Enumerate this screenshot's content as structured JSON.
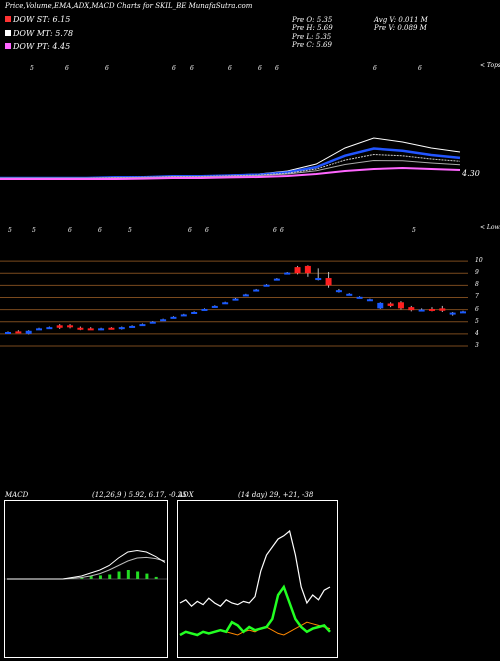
{
  "header": {
    "title": "Price,Volume,EMA,ADX,MACD Charts for SKIL_BE MunafaSutra.com",
    "dow_st": "DOW ST: 6.15",
    "dow_mt": "DOW MT: 5.78",
    "dow_pt": "DOW PT: 4.45",
    "stats": {
      "open": "Pre   O: 5.35",
      "high": "Pre   H: 5.69",
      "low": "Pre   L: 5.35",
      "close": "Pre   C: 5.69",
      "avg_vol": "Avg V: 0.011 M",
      "pre_vol": "Pre   V: 0.089 M"
    }
  },
  "colors": {
    "dow_st": "#ff3333",
    "dow_mt": "#ffffff",
    "dow_pt": "#ff66ff",
    "up": "#1a5aff",
    "down": "#ff2020",
    "macd_hist": "#22dd22",
    "adx_green": "#22ff22",
    "adx_orange": "#ff8800"
  },
  "ema_panel": {
    "top_label": "< Tops",
    "price_label": "4.30",
    "top_markers": [
      "5",
      "6",
      "6",
      "6",
      "6",
      "6",
      "6",
      "6",
      "6",
      "6"
    ],
    "bottom_label": "< Lows",
    "bottom_markers": [
      "5",
      "5",
      "6",
      "6",
      "5",
      "6",
      "6",
      "6",
      "6",
      "5"
    ]
  },
  "price_panel": {
    "y_labels": [
      "10",
      "9",
      "8",
      "7",
      "6",
      "5",
      "4",
      "3"
    ]
  },
  "macd_panel": {
    "title": "MACD",
    "params": "(12,26,9 ) 5.92,  6.17,  -0.25"
  },
  "adx_panel": {
    "title": "ADX",
    "params": "(14  day) 29,  +21,  -38"
  },
  "chart_data": {
    "type": "candlestick",
    "ema_lines": {
      "note_series": [
        "fast EMA",
        "mid EMA",
        "slow EMA",
        "long EMA"
      ],
      "fast": [
        4.1,
        4.1,
        4.1,
        4.1,
        4.15,
        4.15,
        4.2,
        4.2,
        4.25,
        4.3,
        4.45,
        4.8,
        5.6,
        6.1,
        5.9,
        5.6,
        5.4
      ],
      "slow": [
        4.1,
        4.1,
        4.1,
        4.1,
        4.1,
        4.12,
        4.15,
        4.15,
        4.18,
        4.2,
        4.25,
        4.35,
        4.5,
        4.6,
        4.65,
        4.6,
        4.55
      ]
    },
    "price_ylim": [
      2.5,
      10.5
    ],
    "candles": [
      {
        "o": 4.1,
        "h": 4.2,
        "l": 4.0,
        "c": 4.15,
        "dir": "up"
      },
      {
        "o": 4.15,
        "h": 4.3,
        "l": 4.1,
        "c": 4.2,
        "dir": "down"
      },
      {
        "o": 4.0,
        "h": 4.3,
        "l": 3.95,
        "c": 4.25,
        "dir": "up"
      },
      {
        "o": 4.4,
        "h": 4.5,
        "l": 4.35,
        "c": 4.45,
        "dir": "up"
      },
      {
        "o": 4.5,
        "h": 4.6,
        "l": 4.45,
        "c": 4.55,
        "dir": "up"
      },
      {
        "o": 4.7,
        "h": 4.8,
        "l": 4.4,
        "c": 4.5,
        "dir": "down"
      },
      {
        "o": 4.7,
        "h": 4.8,
        "l": 4.45,
        "c": 4.55,
        "dir": "down"
      },
      {
        "o": 4.5,
        "h": 4.6,
        "l": 4.3,
        "c": 4.4,
        "dir": "down"
      },
      {
        "o": 4.45,
        "h": 4.55,
        "l": 4.35,
        "c": 4.4,
        "dir": "down"
      },
      {
        "o": 4.3,
        "h": 4.5,
        "l": 4.3,
        "c": 4.45,
        "dir": "up"
      },
      {
        "o": 4.4,
        "h": 4.55,
        "l": 4.35,
        "c": 4.5,
        "dir": "down"
      },
      {
        "o": 4.4,
        "h": 4.6,
        "l": 4.35,
        "c": 4.55,
        "dir": "up"
      },
      {
        "o": 4.6,
        "h": 4.7,
        "l": 4.55,
        "c": 4.65,
        "dir": "up"
      },
      {
        "o": 4.75,
        "h": 4.85,
        "l": 4.7,
        "c": 4.8,
        "dir": "up"
      },
      {
        "o": 4.95,
        "h": 5.05,
        "l": 4.9,
        "c": 5.0,
        "dir": "up"
      },
      {
        "o": 5.15,
        "h": 5.25,
        "l": 5.1,
        "c": 5.2,
        "dir": "up"
      },
      {
        "o": 5.35,
        "h": 5.45,
        "l": 5.3,
        "c": 5.4,
        "dir": "up"
      },
      {
        "o": 5.55,
        "h": 5.65,
        "l": 5.5,
        "c": 5.6,
        "dir": "up"
      },
      {
        "o": 5.75,
        "h": 5.85,
        "l": 5.7,
        "c": 5.8,
        "dir": "up"
      },
      {
        "o": 6.0,
        "h": 6.1,
        "l": 5.95,
        "c": 6.05,
        "dir": "up"
      },
      {
        "o": 6.25,
        "h": 6.35,
        "l": 6.2,
        "c": 6.3,
        "dir": "up"
      },
      {
        "o": 6.55,
        "h": 6.65,
        "l": 6.5,
        "c": 6.6,
        "dir": "up"
      },
      {
        "o": 6.85,
        "h": 6.95,
        "l": 6.8,
        "c": 6.9,
        "dir": "up"
      },
      {
        "o": 7.2,
        "h": 7.3,
        "l": 7.15,
        "c": 7.25,
        "dir": "up"
      },
      {
        "o": 7.6,
        "h": 7.7,
        "l": 7.55,
        "c": 7.65,
        "dir": "up"
      },
      {
        "o": 8.0,
        "h": 8.1,
        "l": 7.95,
        "c": 8.05,
        "dir": "up"
      },
      {
        "o": 8.5,
        "h": 8.6,
        "l": 8.45,
        "c": 8.55,
        "dir": "up"
      },
      {
        "o": 9.0,
        "h": 9.1,
        "l": 8.95,
        "c": 9.05,
        "dir": "up"
      },
      {
        "o": 9.5,
        "h": 9.6,
        "l": 8.9,
        "c": 9.0,
        "dir": "down"
      },
      {
        "o": 9.6,
        "h": 9.65,
        "l": 8.7,
        "c": 9.0,
        "dir": "down"
      },
      {
        "o": 8.5,
        "h": 9.4,
        "l": 8.4,
        "c": 8.6,
        "dir": "up"
      },
      {
        "o": 8.6,
        "h": 9.1,
        "l": 7.8,
        "c": 8.0,
        "dir": "down"
      },
      {
        "o": 7.5,
        "h": 7.7,
        "l": 7.4,
        "c": 7.6,
        "dir": "up"
      },
      {
        "o": 7.25,
        "h": 7.35,
        "l": 7.2,
        "c": 7.3,
        "dir": "up"
      },
      {
        "o": 7.0,
        "h": 7.1,
        "l": 6.95,
        "c": 7.05,
        "dir": "up"
      },
      {
        "o": 6.8,
        "h": 6.9,
        "l": 6.75,
        "c": 6.85,
        "dir": "up"
      },
      {
        "o": 6.1,
        "h": 6.6,
        "l": 6.05,
        "c": 6.55,
        "dir": "up"
      },
      {
        "o": 6.5,
        "h": 6.6,
        "l": 6.2,
        "c": 6.3,
        "dir": "down"
      },
      {
        "o": 6.6,
        "h": 6.7,
        "l": 6.0,
        "c": 6.1,
        "dir": "down"
      },
      {
        "o": 6.2,
        "h": 6.3,
        "l": 5.85,
        "c": 5.95,
        "dir": "down"
      },
      {
        "o": 5.95,
        "h": 6.1,
        "l": 5.85,
        "c": 6.0,
        "dir": "up"
      },
      {
        "o": 5.9,
        "h": 6.2,
        "l": 5.85,
        "c": 6.05,
        "dir": "down"
      },
      {
        "o": 6.1,
        "h": 6.3,
        "l": 5.8,
        "c": 5.9,
        "dir": "down"
      },
      {
        "o": 5.6,
        "h": 5.8,
        "l": 5.5,
        "c": 5.75,
        "dir": "up"
      },
      {
        "o": 5.8,
        "h": 5.9,
        "l": 5.75,
        "c": 5.85,
        "dir": "up"
      }
    ],
    "macd": {
      "macd_line": [
        0,
        0,
        0,
        0,
        0,
        0,
        0,
        0.05,
        0.1,
        0.2,
        0.3,
        0.45,
        0.7,
        0.9,
        0.95,
        0.9,
        0.75,
        0.55
      ],
      "signal_line": [
        0,
        0,
        0,
        0,
        0,
        0,
        0,
        0.02,
        0.05,
        0.1,
        0.18,
        0.3,
        0.45,
        0.6,
        0.7,
        0.72,
        0.68,
        0.6
      ],
      "histogram": [
        0,
        0,
        0,
        0,
        0,
        0,
        0,
        0.03,
        0.05,
        0.1,
        0.12,
        0.15,
        0.25,
        0.3,
        0.25,
        0.18,
        0.07,
        -0.05
      ]
    },
    "adx": {
      "dmi_line": [
        30,
        32,
        28,
        31,
        29,
        33,
        30,
        28,
        32,
        30,
        29,
        31,
        30,
        34,
        50,
        60,
        65,
        70,
        72,
        75,
        60,
        40,
        30,
        35,
        32,
        38,
        40
      ],
      "adx_line": [
        10,
        12,
        11,
        10,
        12,
        11,
        12,
        13,
        12,
        18,
        16,
        12,
        15,
        13,
        14,
        15,
        20,
        35,
        40,
        30,
        20,
        15,
        12,
        14,
        15,
        16,
        12
      ],
      "minus_di": [
        10,
        12,
        11,
        10,
        12,
        11,
        12,
        13,
        12,
        11,
        10,
        12,
        13,
        12,
        14,
        15,
        13,
        11,
        10,
        12,
        14,
        16,
        18,
        17,
        16,
        15,
        14
      ]
    }
  }
}
